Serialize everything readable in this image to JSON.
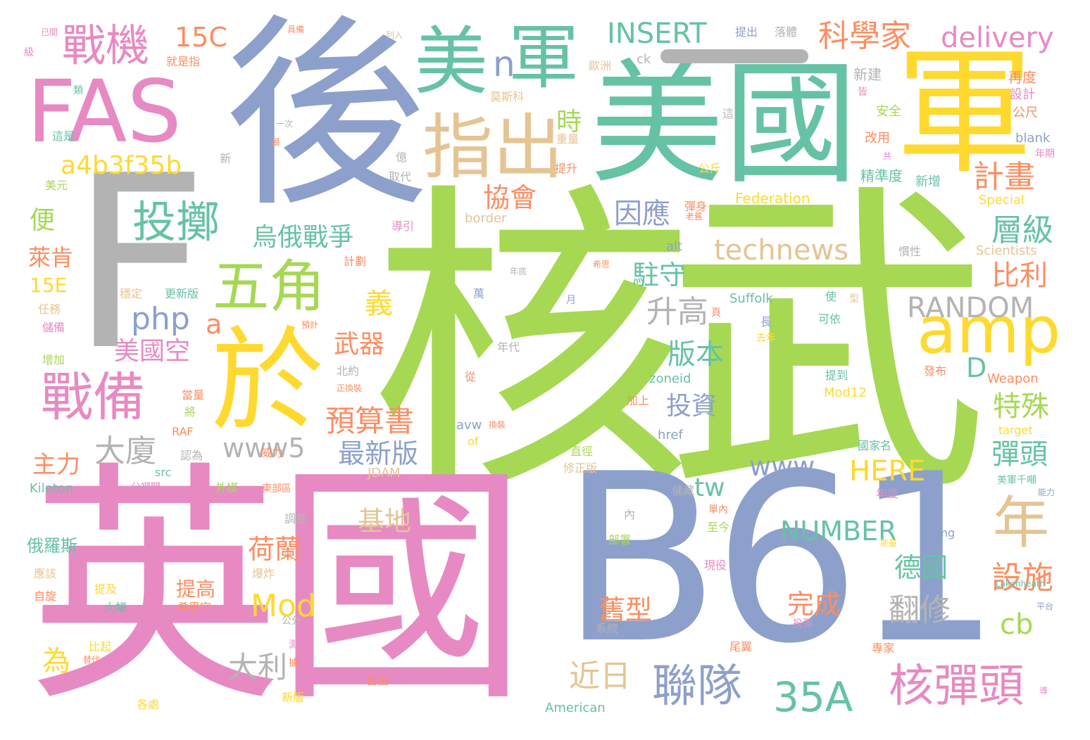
{
  "colors": {
    "background": "#ffffff",
    "green": "#a6d854",
    "teal": "#66c2a5",
    "pink": "#e78ac3",
    "blue": "#8da0cb",
    "yellow": "#ffd92f",
    "orange": "#fc8d62",
    "tan": "#e5c494",
    "gray": "#b3b3b3"
  },
  "words": {
    "hewu": "核武",
    "yingguo": "英國",
    "b61": "B61",
    "f": "F",
    "meiguo": "美國",
    "hou": "後",
    "jun": "軍",
    "fas": "FAS",
    "yu": "於",
    "mei": "美",
    "jun2": "軍",
    "n": "n",
    "zhichu": "指出",
    "zhanji": "戰機",
    "zhanbei": "戰備",
    "wujiao": "五角",
    "touzhi": "投擲",
    "amp": "amp",
    "nian": "年",
    "hedantou": "核彈頭",
    "lianduei": "聯隊",
    "a35": "35A",
    "c15": "15C",
    "insert": "INSERT",
    "kexuejia": "科學家",
    "delivery": "delivery",
    "a4b3": "a4b3f35b",
    "jihua": "計畫",
    "xiehui": "協會",
    "shi": "時",
    "yinying": "因應",
    "wuezhanzheng": "烏俄戰爭",
    "technews": "technews",
    "cengji": "層級",
    "laiken": "萊肯",
    "bian": "便",
    "e15": "15E",
    "php": "php",
    "a": "a",
    "meiguokong": "美國空",
    "zhushou": "駐守",
    "bili": "比利",
    "random": "RANDOM",
    "shenggao": "升高",
    "yi": "義",
    "wuqi": "武器",
    "banben": "版本",
    "d": "D",
    "yusuanshu": "預算書",
    "touzi": "投資",
    "teshu": "特殊",
    "dasha": "大廈",
    "www5": "www5",
    "zuixinban": "最新版",
    "zhuli": "主力",
    "www": "www",
    "tw": "tw",
    "here": "HERE",
    "dantou": "彈頭",
    "number": "NUMBER",
    "jidi": "基地",
    "deguo": "德國",
    "helan": "荷蘭",
    "sheshi": "設施",
    "mod": "Mod",
    "wancheng": "完成",
    "fanxiu": "翻修",
    "cb": "cb",
    "jiuxing": "舊型",
    "wei": "為",
    "dali": "大利",
    "jinri": "近日",
    "tigao": "提高",
    "eluosi": "俄羅斯",
    "xinan": "新建",
    "zaidu": "再度",
    "sheji": "設計",
    "gongchi": "公尺",
    "nianqi": "年期",
    "blank": "blank",
    "anquan": "安全",
    "gaiyong": "改用",
    "jingzhundu": "精準度",
    "xinzeng": "新增",
    "special": "Special",
    "scientists": "Scientists",
    "federation": "Federation",
    "border": "border",
    "alt": "alt",
    "suffolk": "Suffolk",
    "zoneid": "zoneid",
    "weapon": "Weapon",
    "mod12": "Mod12",
    "target": "target",
    "href": "href",
    "jinqi": "近期",
    "weili": "威力",
    "guojiaming": "國家名",
    "lakenheath": "Lakenheath",
    "kiloton": "Kiloton",
    "jdam": "JDAM",
    "american": "American",
    "img": "img",
    "src": "src",
    "avw": "avw",
    "of": "of",
    "raf": "RAF",
    "luoti": "落體",
    "tichu": "提出",
    "jubei": "具備",
    "liejian": "列入",
    "jiushizhi": "就是指",
    "ouzhou": "歐洲",
    "ck": "ck",
    "yingsike": "莫斯科",
    "zhongliang": "重量",
    "tisheng": "提升",
    "qudai": "取代",
    "yi2": "億",
    "meiyuan": "美元",
    "renwu": "任務",
    "chubei": "儲備",
    "zengjia": "增加",
    "wending": "穩定",
    "gengxinban": "更新版",
    "zhebei": "這是",
    "yici": "一次",
    "xin": "新",
    "gongjin": "公斤",
    "danshen": "彈身",
    "daoyin": "導引",
    "jihua2": "計劃",
    "niandi": "年底",
    "xisi": "希思",
    "wan": "萬",
    "nianda": "年代",
    "cong": "從",
    "beiyue": "北約",
    "zhenghuanzhuang": "正換裝",
    "dangliang": "當量",
    "jiang": "將",
    "renwei": "認為",
    "zhijing": "直徑",
    "xiuzhengban": "修正版",
    "waimei": "外媒",
    "dongbu": "東部區",
    "tiaozheng": "調整",
    "yinggai": "應該",
    "baozha": "爆炸",
    "zixuan": "自旋",
    "tiji": "提及",
    "dafu": "大幅",
    "xisikong": "希思空",
    "bigi": "比起",
    "ceshi": "測試",
    "ziyou": "自由",
    "xinban": "新版",
    "geshi": "各處",
    "weiyi": "尾翼",
    "zhuanjia": "專家",
    "pingtai": "平台",
    "nengli": "能力",
    "xianyi": "現役",
    "zhijin": "至今",
    "bushu": "部署",
    "nei": "內",
    "chucang": "儲藏",
    "niandu": "年度",
    "nengyuan": "能量",
    "jiayou": "加上",
    "tidao": "提到",
    "fabu": "發布",
    "ketiyi": "可依",
    "qunian": "去年",
    "zhang": "長",
    "shi2": "使",
    "xing": "型",
    "ye": "頁",
    "yuefen": "月",
    "guanxing": "慣性",
    "gong": "共",
    "jie": "皆",
    "zhe": "這",
    "lei": "類",
    "ji": "級",
    "yijian": "已間",
    "gongfen": "公分",
    "xitong": "系統",
    "toudan": "投彈",
    "meijun": "美軍千噸",
    "lao": "老舊",
    "gongdun": "公噸間",
    "danei": "單內",
    "yuce": "預計",
    "huanzhuang": "換裝",
    "zuijin": "最",
    "zhengti": "正體",
    "dai": "替代",
    "ju": "據",
    "dao": "導"
  }
}
